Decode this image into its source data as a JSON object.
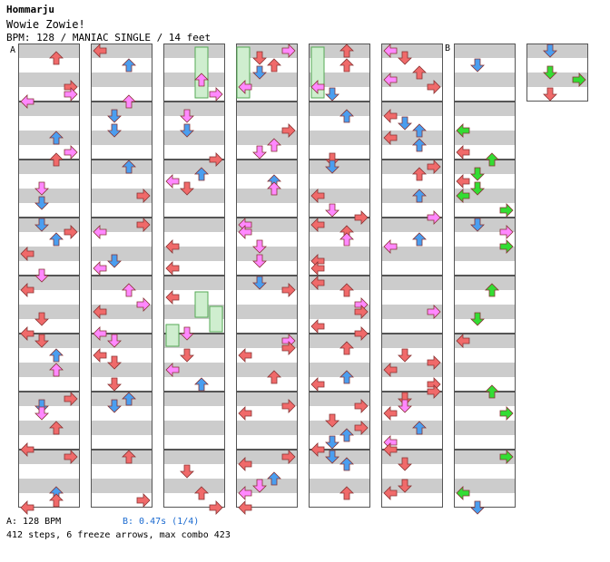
{
  "header": {
    "artist": "Hommarju",
    "title": "Wowie Zowie!",
    "meta": "BPM: 128 / MANIAC SINGLE / 14 feet"
  },
  "markers": {
    "a": "A",
    "b": "B"
  },
  "footer": {
    "bpm_label": "A: 128 BPM",
    "stop_label": "B: 0.47s (1/4)",
    "stats": "412 steps, 6 freeze arrows, max combo 423"
  },
  "colors": {
    "left": "#f06a6a",
    "down": "#4a9ef0",
    "up": "#f06a6a",
    "right": "#f06a6a",
    "pink": "#ff88ff",
    "green": "#33dd33",
    "freeze": "#44cc44",
    "stripe": "#cccccc",
    "footer_b": "#1a6ad0"
  },
  "chart_data": {
    "type": "table",
    "columns": 8,
    "measures_per_column": 8,
    "lanes": [
      "left",
      "down",
      "up",
      "right"
    ],
    "total_steps": 412,
    "freeze_arrows": 6,
    "max_combo": 423,
    "bpm": 128
  }
}
